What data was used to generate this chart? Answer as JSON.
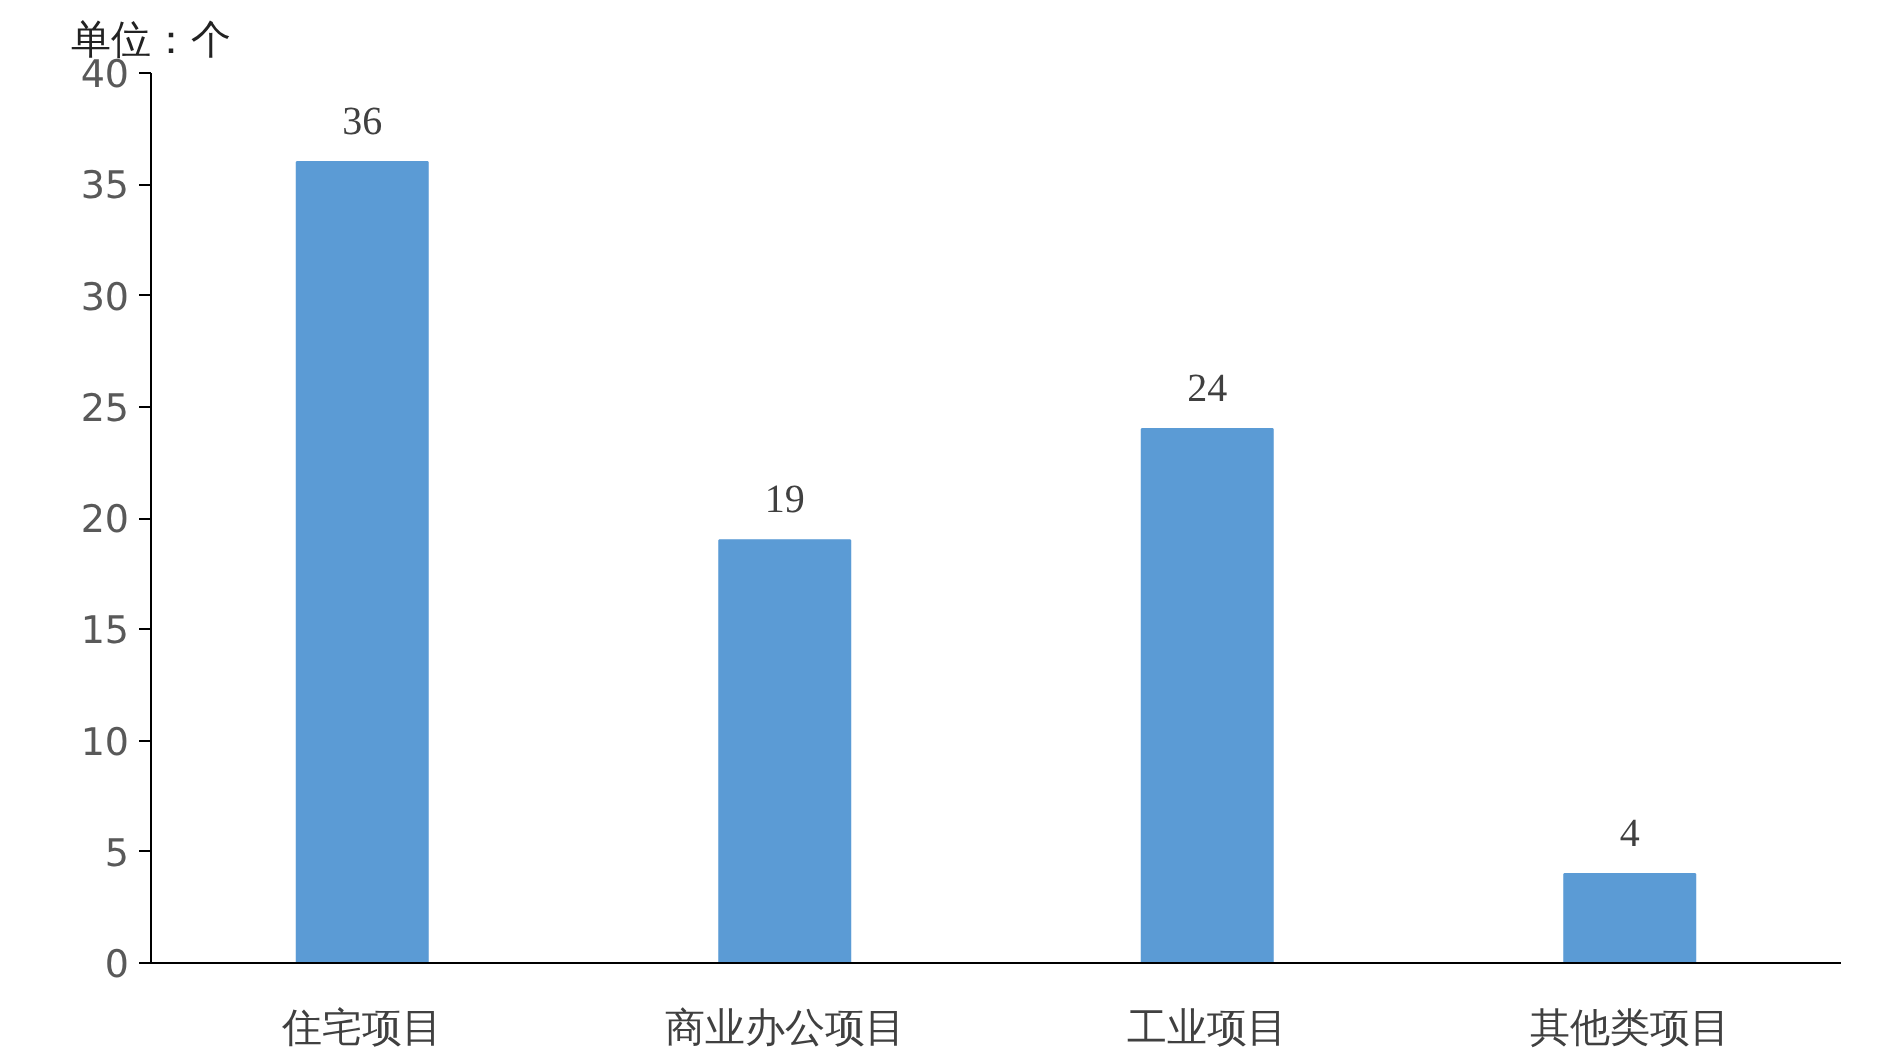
{
  "chart_data": {
    "type": "bar",
    "title": "单位：个",
    "categories": [
      "住宅项目",
      "商业办公项目",
      "工业项目",
      "其他类项目"
    ],
    "values": [
      36,
      19,
      24,
      4
    ],
    "color": "#5b9bd5",
    "ylim": [
      0,
      40
    ],
    "yticks": [
      0,
      5,
      10,
      15,
      20,
      25,
      30,
      35,
      40
    ],
    "grid": false,
    "data_labels": true
  }
}
